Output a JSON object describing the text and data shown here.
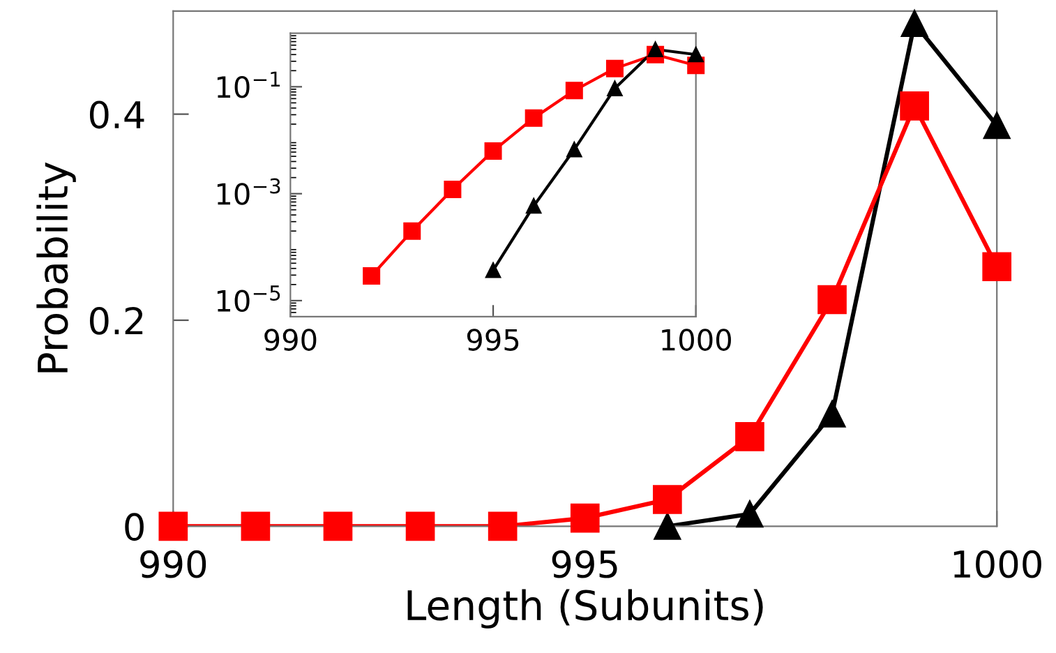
{
  "chart_data": [
    {
      "type": "line",
      "xlabel": "Length (Subunits)",
      "ylabel": "Probability",
      "xlim": [
        990,
        1000
      ],
      "ylim": [
        0,
        0.5
      ],
      "xticks": [
        990,
        995,
        1000
      ],
      "yticks": [
        0,
        0.2,
        0.4
      ],
      "grid": false,
      "legend": false,
      "series": [
        {
          "color": "#000000",
          "marker": "triangle",
          "x": [
            996,
            997,
            998,
            999,
            1000
          ],
          "values": [
            0.0,
            0.012,
            0.109,
            0.488,
            0.389
          ]
        },
        {
          "color": "#ff0000",
          "marker": "square",
          "x": [
            990,
            991,
            992,
            993,
            994,
            995,
            996,
            997,
            998,
            999,
            1000
          ],
          "values": [
            0,
            0,
            0,
            0,
            0,
            0.008,
            0.026,
            0.087,
            0.22,
            0.408,
            0.252
          ]
        }
      ]
    },
    {
      "type": "line",
      "log": "y",
      "xlim": [
        990,
        1000
      ],
      "ylim": [
        5e-06,
        1
      ],
      "xticks": [
        990,
        995,
        1000
      ],
      "yticks": [
        {
          "value": 0.1,
          "label": "10$^{−1}$"
        },
        {
          "value": 0.001,
          "label": "10$^{−3}$"
        },
        {
          "value": 1e-05,
          "label": "10$^{−5}$"
        }
      ],
      "grid": false,
      "legend": false,
      "series": [
        {
          "color": "#ff0000",
          "marker": "square",
          "x": [
            992,
            993,
            994,
            995,
            996,
            997,
            998,
            999,
            1000
          ],
          "values": [
            2.9e-05,
            0.0002,
            0.0012,
            0.0063,
            0.026,
            0.085,
            0.22,
            0.4,
            0.25
          ]
        },
        {
          "color": "#000000",
          "marker": "triangle",
          "x": [
            995,
            996,
            997,
            998,
            999,
            1000
          ],
          "values": [
            3.7e-05,
            0.00059,
            0.0067,
            0.093,
            0.5,
            0.4
          ]
        }
      ]
    }
  ]
}
